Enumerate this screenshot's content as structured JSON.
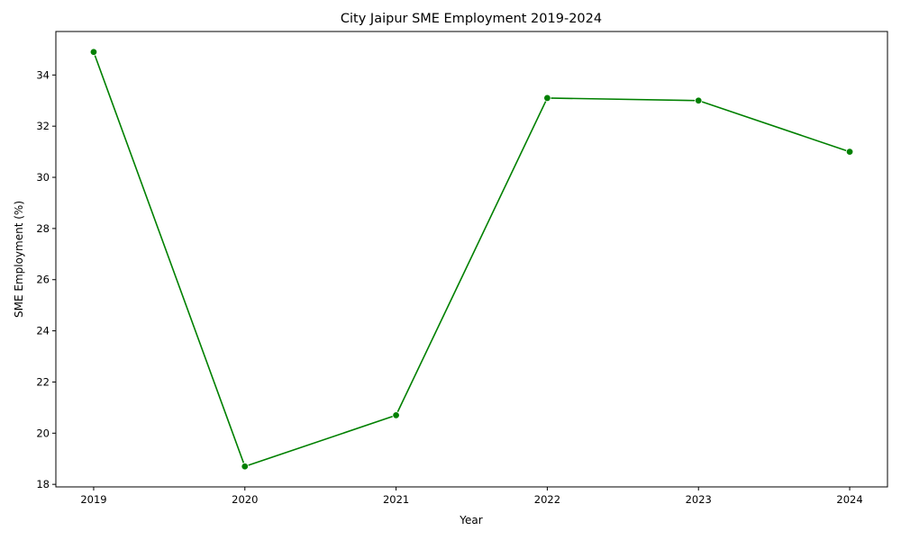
{
  "chart_data": {
    "type": "line",
    "title": "City Jaipur SME Employment 2019-2024",
    "xlabel": "Year",
    "ylabel": "SME Employment (%)",
    "x": [
      "2019",
      "2020",
      "2021",
      "2022",
      "2023",
      "2024"
    ],
    "series": [
      {
        "values": [
          34.9,
          18.7,
          20.7,
          33.1,
          33.0,
          31.0
        ]
      }
    ],
    "xlim": [
      2018.75,
      2024.25
    ],
    "ylim": [
      17.9,
      35.7
    ],
    "yticks": [
      18,
      20,
      22,
      24,
      26,
      28,
      30,
      32,
      34
    ],
    "grid": false,
    "line_color": "#008000",
    "marker": "circle"
  }
}
